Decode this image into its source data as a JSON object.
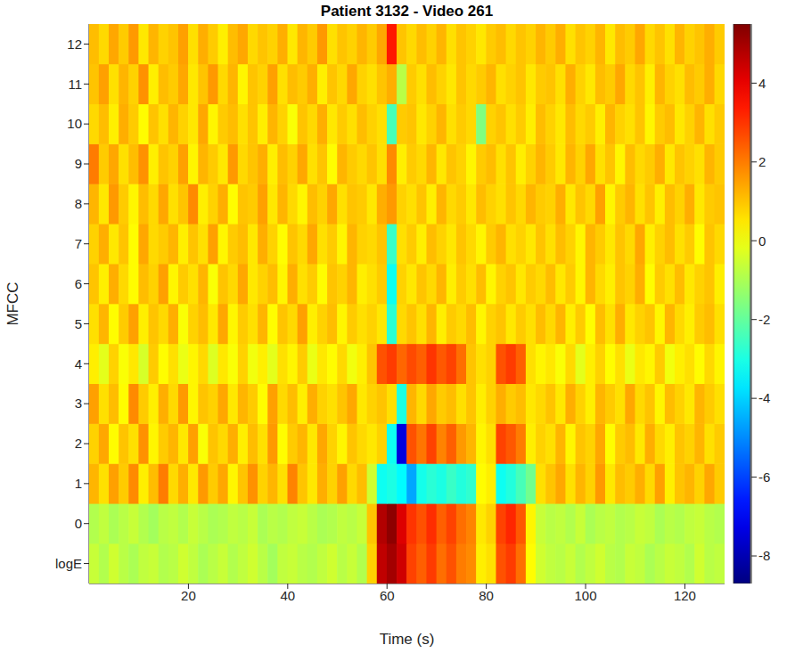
{
  "chart_data": {
    "type": "heatmap",
    "title": "Patient 3132 - Video 261",
    "x_label": "Time (s)",
    "y_label": "MFCC",
    "color": "jet",
    "x": [
      1,
      3,
      5,
      7,
      9,
      11,
      13,
      15,
      17,
      19,
      21,
      23,
      25,
      27,
      29,
      31,
      33,
      35,
      37,
      39,
      41,
      43,
      45,
      47,
      49,
      51,
      53,
      55,
      57,
      59,
      61,
      63,
      65,
      67,
      69,
      71,
      73,
      75,
      77,
      79,
      81,
      83,
      85,
      87,
      89,
      91,
      93,
      95,
      97,
      99,
      101,
      103,
      105,
      107,
      109,
      111,
      113,
      115,
      117,
      119,
      121,
      123,
      125,
      127
    ],
    "y": [
      "logE",
      "0",
      "1",
      "2",
      "3",
      "4",
      "5",
      "6",
      "7",
      "8",
      "9",
      "10",
      "11",
      "12"
    ],
    "xlim": [
      0,
      128
    ],
    "xticks": [
      20,
      40,
      60,
      80,
      100,
      120
    ],
    "colorbar_lim": [
      -8.7,
      5.5
    ],
    "colorbar_ticks": [
      -8,
      -6,
      -4,
      -2,
      0,
      2,
      4
    ],
    "z": [
      [
        -0.6,
        -0.9,
        -0.5,
        -0.8,
        -1.0,
        -0.7,
        -0.6,
        -0.9,
        -0.8,
        -0.5,
        -0.7,
        -1.0,
        -0.8,
        -0.6,
        -0.9,
        -0.7,
        -0.5,
        -0.8,
        -1.1,
        -0.7,
        -0.6,
        -0.8,
        -0.9,
        -0.7,
        -0.5,
        -0.8,
        -0.6,
        -0.9,
        0.8,
        4.6,
        5.0,
        4.4,
        2.8,
        2.4,
        2.9,
        2.2,
        2.6,
        2.0,
        1.8,
        0.4,
        0.6,
        2.6,
        2.9,
        2.2,
        0.2,
        -0.5,
        -0.7,
        -0.8,
        -0.6,
        -0.9,
        -0.7,
        -0.5,
        -0.8,
        -0.9,
        -0.6,
        -0.7,
        -1.0,
        -0.8,
        -0.6,
        -0.7,
        -0.9,
        -0.5,
        -0.8,
        -0.7
      ],
      [
        -0.9,
        -0.7,
        -1.0,
        -0.8,
        -0.6,
        -0.9,
        -1.1,
        -0.8,
        -0.7,
        -0.9,
        -0.6,
        -0.8,
        -1.0,
        -0.9,
        -0.7,
        -0.8,
        -0.6,
        -1.0,
        -0.8,
        -0.9,
        -0.7,
        -0.6,
        -0.8,
        -1.0,
        -0.9,
        -0.7,
        -0.8,
        -0.6,
        1.0,
        4.8,
        5.3,
        4.2,
        3.0,
        2.6,
        3.1,
        2.4,
        2.8,
        2.2,
        1.9,
        0.5,
        0.8,
        2.8,
        3.2,
        2.5,
        0.3,
        -0.6,
        -0.8,
        -0.7,
        -0.9,
        -0.6,
        -1.0,
        -0.8,
        -0.7,
        -0.9,
        -0.8,
        -0.6,
        -0.7,
        -1.0,
        -0.8,
        -0.9,
        -0.7,
        -0.6,
        -0.8,
        -0.9
      ],
      [
        1.2,
        0.6,
        1.5,
        0.9,
        1.8,
        0.4,
        1.1,
        2.0,
        0.7,
        1.3,
        0.5,
        1.6,
        0.9,
        1.4,
        0.3,
        1.0,
        1.7,
        0.8,
        1.2,
        0.6,
        1.9,
        1.0,
        0.5,
        1.3,
        0.8,
        1.5,
        0.7,
        1.1,
        -0.5,
        -3.2,
        -3.0,
        -3.4,
        -4.6,
        -3.1,
        -2.8,
        -3.0,
        -2.6,
        -2.9,
        -2.7,
        0.2,
        0.4,
        -3.2,
        -2.9,
        -2.4,
        -1.8,
        0.6,
        1.0,
        1.4,
        0.6,
        1.2,
        0.8,
        1.6,
        0.5,
        1.1,
        0.9,
        1.3,
        0.7,
        1.5,
        0.4,
        1.0,
        1.2,
        0.8,
        1.4,
        0.9
      ],
      [
        0.8,
        1.4,
        0.2,
        1.0,
        0.6,
        1.7,
        0.3,
        0.9,
        1.2,
        0.5,
        1.5,
        0.1,
        1.0,
        0.7,
        1.3,
        0.4,
        1.1,
        0.6,
        1.6,
        0.2,
        0.9,
        1.2,
        0.5,
        1.4,
        0.8,
        0.3,
        1.0,
        0.7,
        0.5,
        0.8,
        -3.2,
        -7.4,
        2.6,
        2.1,
        2.8,
        1.9,
        2.4,
        1.6,
        1.2,
        0.3,
        0.6,
        2.8,
        2.5,
        2.0,
        0.4,
        0.8,
        0.6,
        1.2,
        0.3,
        1.0,
        0.8,
        1.4,
        0.2,
        0.9,
        1.1,
        0.5,
        1.3,
        0.7,
        0.4,
        1.0,
        0.8,
        1.2,
        0.6,
        0.9
      ],
      [
        1.5,
        0.6,
        1.1,
        0.2,
        1.8,
        0.9,
        0.4,
        1.3,
        0.7,
        1.6,
        0.3,
        1.0,
        0.8,
        1.4,
        0.5,
        1.2,
        0.9,
        0.2,
        1.5,
        0.7,
        1.1,
        0.4,
        1.3,
        0.8,
        0.6,
        1.0,
        1.4,
        0.5,
        0.8,
        1.0,
        0.6,
        -3.0,
        1.2,
        0.7,
        1.4,
        0.9,
        1.1,
        0.6,
        1.0,
        0.4,
        0.8,
        1.3,
        0.9,
        1.1,
        0.5,
        0.7,
        1.0,
        0.5,
        1.3,
        0.8,
        0.4,
        1.2,
        0.9,
        0.6,
        1.4,
        0.7,
        1.0,
        0.3,
        1.1,
        0.8,
        0.5,
        1.2,
        0.9,
        0.6
      ],
      [
        0.4,
        -0.2,
        0.8,
        0.1,
        0.5,
        -0.4,
        0.9,
        0.2,
        0.6,
        -0.1,
        0.3,
        0.7,
        -0.3,
        0.5,
        0.1,
        0.8,
        0.0,
        0.4,
        -0.2,
        0.6,
        0.3,
        0.9,
        -0.1,
        0.5,
        0.2,
        0.7,
        0.0,
        0.4,
        1.0,
        2.6,
        2.9,
        2.3,
        2.7,
        2.4,
        3.0,
        2.5,
        2.8,
        2.2,
        1.0,
        0.6,
        0.8,
        2.6,
        2.9,
        2.4,
        0.6,
        0.3,
        0.5,
        0.1,
        0.7,
        -0.2,
        0.4,
        0.8,
        0.2,
        0.6,
        -0.1,
        0.5,
        0.3,
        0.9,
        0.0,
        0.4,
        0.6,
        0.2,
        0.7,
        0.3
      ],
      [
        0.6,
        1.2,
        0.2,
        0.9,
        1.5,
        0.4,
        1.0,
        0.7,
        1.3,
        0.1,
        0.8,
        1.1,
        0.5,
        1.4,
        0.3,
        0.9,
        0.6,
        1.2,
        0.2,
        1.0,
        0.7,
        1.5,
        0.4,
        0.8,
        1.1,
        0.3,
        0.9,
        0.6,
        0.8,
        0.5,
        -2.8,
        0.7,
        1.0,
        0.6,
        1.2,
        0.4,
        0.9,
        0.7,
        1.1,
        0.3,
        0.8,
        1.0,
        0.5,
        0.9,
        0.6,
        1.1,
        0.7,
        1.2,
        0.4,
        0.9,
        0.2,
        1.1,
        0.6,
        1.3,
        0.5,
        0.8,
        1.0,
        0.3,
        1.2,
        0.7,
        0.4,
        0.9,
        1.1,
        0.6
      ],
      [
        1.0,
        0.4,
        1.3,
        0.7,
        0.2,
        1.1,
        0.8,
        1.5,
        0.3,
        0.9,
        0.6,
        1.2,
        0.1,
        1.0,
        0.7,
        1.4,
        0.5,
        0.8,
        1.1,
        0.3,
        1.3,
        0.6,
        0.9,
        0.2,
        1.0,
        0.8,
        1.2,
        0.4,
        0.6,
        0.9,
        -3.2,
        0.8,
        0.5,
        1.0,
        0.7,
        1.2,
        0.4,
        0.9,
        0.6,
        1.1,
        0.3,
        0.8,
        1.0,
        0.5,
        0.9,
        0.7,
        1.1,
        0.5,
        0.9,
        0.3,
        1.2,
        0.7,
        0.4,
        1.0,
        0.8,
        1.3,
        0.2,
        0.9,
        0.6,
        1.1,
        0.5,
        0.8,
        1.0,
        0.4
      ],
      [
        0.8,
        1.3,
        0.5,
        1.0,
        0.2,
        1.4,
        0.7,
        0.9,
        1.2,
        0.4,
        1.0,
        0.6,
        1.5,
        0.3,
        0.9,
        1.1,
        0.5,
        1.3,
        0.8,
        0.2,
        1.0,
        0.7,
        1.4,
        0.6,
        0.9,
        0.3,
        1.2,
        0.8,
        0.7,
        1.0,
        -2.6,
        0.6,
        0.9,
        0.4,
        1.1,
        0.8,
        0.5,
        1.0,
        0.7,
        0.3,
        0.9,
        1.2,
        0.6,
        0.8,
        0.5,
        1.0,
        0.6,
        1.1,
        0.8,
        0.3,
        1.2,
        0.9,
        0.5,
        1.0,
        0.7,
        1.4,
        0.4,
        0.8,
        1.1,
        0.6,
        0.9,
        0.2,
        1.0,
        0.7
      ],
      [
        1.2,
        0.5,
        1.6,
        0.9,
        0.3,
        1.1,
        0.7,
        1.4,
        0.6,
        1.0,
        1.8,
        0.4,
        0.8,
        1.3,
        0.2,
        1.0,
        0.9,
        1.5,
        0.5,
        1.2,
        0.7,
        0.3,
        1.1,
        0.8,
        1.4,
        0.6,
        1.0,
        0.9,
        0.5,
        1.3,
        1.6,
        0.8,
        0.6,
        1.0,
        0.4,
        1.2,
        0.7,
        0.9,
        0.5,
        1.1,
        0.8,
        0.6,
        1.0,
        0.7,
        1.2,
        0.9,
        0.8,
        1.3,
        0.5,
        1.0,
        0.7,
        1.5,
        0.3,
        0.9,
        1.2,
        0.6,
        1.0,
        0.4,
        1.1,
        0.8,
        1.3,
        0.5,
        0.9,
        1.0
      ],
      [
        2.0,
        0.9,
        1.4,
        0.6,
        1.1,
        1.7,
        0.4,
        1.0,
        0.8,
        1.5,
        0.3,
        1.2,
        0.9,
        0.5,
        1.6,
        0.7,
        1.0,
        1.3,
        0.4,
        1.1,
        0.8,
        1.4,
        0.6,
        1.0,
        0.2,
        1.2,
        0.9,
        0.7,
        1.0,
        0.6,
        1.8,
        0.4,
        0.9,
        0.7,
        1.2,
        0.5,
        1.0,
        0.8,
        0.3,
        0.9,
        1.1,
        0.6,
        1.0,
        0.4,
        0.8,
        1.2,
        0.9,
        0.5,
        1.2,
        0.8,
        1.4,
        0.6,
        1.0,
        0.3,
        1.1,
        0.7,
        0.9,
        1.3,
        0.5,
        1.0,
        0.8,
        0.6,
        1.2,
        0.9
      ],
      [
        0.7,
        1.1,
        0.4,
        1.3,
        0.9,
        0.2,
        1.0,
        0.6,
        1.2,
        0.8,
        0.5,
        1.4,
        0.3,
        0.9,
        1.1,
        0.6,
        1.0,
        0.4,
        1.2,
        0.8,
        0.1,
        1.0,
        0.7,
        1.3,
        0.5,
        0.9,
        0.6,
        1.1,
        0.8,
        0.6,
        -2.4,
        0.9,
        1.0,
        0.5,
        0.8,
        1.2,
        0.6,
        0.9,
        0.7,
        -1.6,
        0.8,
        1.0,
        0.6,
        0.9,
        0.4,
        1.1,
        0.8,
        0.5,
        1.1,
        0.7,
        0.9,
        0.4,
        1.2,
        0.8,
        0.6,
        1.0,
        0.3,
        0.9,
        1.1,
        0.5,
        0.8,
        1.2,
        0.6,
        0.9
      ],
      [
        1.0,
        1.5,
        0.6,
        1.2,
        0.8,
        1.7,
        0.4,
        1.1,
        0.9,
        1.4,
        0.5,
        1.0,
        1.6,
        0.7,
        1.2,
        0.3,
        1.0,
        0.8,
        1.5,
        0.6,
        1.1,
        0.9,
        1.3,
        0.4,
        1.0,
        0.7,
        1.4,
        0.8,
        0.6,
        1.0,
        1.3,
        -0.8,
        0.9,
        0.6,
        1.1,
        0.8,
        0.5,
        1.0,
        0.7,
        0.9,
        1.2,
        0.6,
        0.8,
        1.0,
        0.5,
        0.9,
        1.0,
        0.6,
        1.3,
        0.8,
        0.5,
        1.1,
        0.9,
        1.4,
        0.7,
        1.0,
        0.4,
        1.2,
        0.8,
        0.6,
        1.1,
        0.9,
        1.3,
        0.7
      ],
      [
        1.1,
        0.7,
        1.4,
        0.9,
        1.6,
        0.5,
        1.2,
        0.8,
        1.0,
        1.5,
        0.6,
        1.3,
        0.9,
        0.4,
        1.1,
        1.4,
        0.7,
        1.0,
        0.8,
        1.3,
        0.5,
        1.2,
        0.9,
        1.6,
        0.6,
        1.0,
        0.8,
        1.2,
        0.9,
        1.4,
        3.4,
        1.0,
        0.7,
        1.1,
        0.8,
        1.2,
        0.6,
        1.0,
        0.8,
        0.5,
        0.9,
        1.1,
        0.7,
        1.0,
        0.8,
        1.2,
        0.9,
        1.3,
        0.6,
        1.0,
        0.8,
        1.2,
        0.5,
        1.1,
        0.9,
        1.4,
        0.7,
        1.0,
        0.6,
        1.2,
        0.8,
        1.0,
        1.3,
        0.9
      ]
    ]
  }
}
